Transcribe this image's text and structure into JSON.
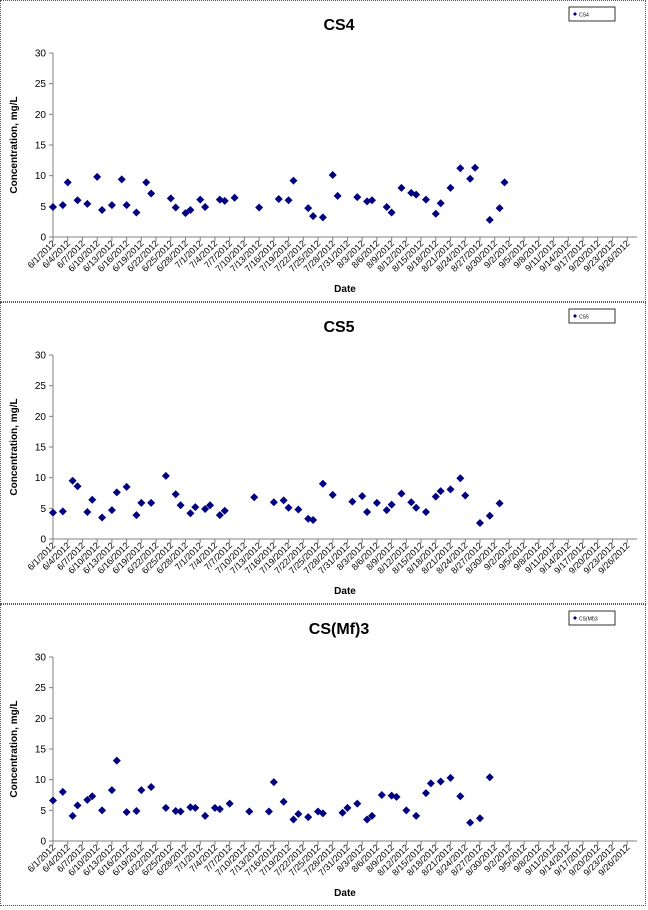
{
  "colors": {
    "marker": "#000080",
    "axis": "#808080",
    "frame": "#555555"
  },
  "chart_data": [
    {
      "type": "scatter",
      "title": "CS4",
      "legend_label": "CS4",
      "legend_position": "top-right",
      "xlabel": "Date",
      "ylabel": "Concentration, mg/L",
      "ylim": [
        0,
        30
      ],
      "yticks": [
        0,
        5,
        10,
        15,
        20,
        25,
        30
      ],
      "grid": false,
      "x_range": [
        "2012-06-01",
        "2012-09-28"
      ],
      "xtick_labels": [
        "6/1/2012",
        "6/4/2012",
        "6/7/2012",
        "6/10/2012",
        "6/13/2012",
        "6/16/2012",
        "6/19/2012",
        "6/22/2012",
        "6/25/2012",
        "6/28/2012",
        "7/1/2012",
        "7/4/2012",
        "7/7/2012",
        "7/10/2012",
        "7/13/2012",
        "7/16/2012",
        "7/19/2012",
        "7/22/2012",
        "7/25/2012",
        "7/28/2012",
        "7/31/2012",
        "8/3/2012",
        "8/6/2012",
        "8/9/2012",
        "8/12/2012",
        "8/15/2012",
        "8/18/2012",
        "8/21/2012",
        "8/24/2012",
        "8/27/2012",
        "8/30/2012",
        "9/2/2012",
        "9/5/2012",
        "9/8/2012",
        "9/11/2012",
        "9/14/2012",
        "9/17/2012",
        "9/20/2012",
        "9/23/2012",
        "9/26/2012"
      ],
      "points": [
        [
          "2012-06-01",
          4.9
        ],
        [
          "2012-06-03",
          5.2
        ],
        [
          "2012-06-04",
          8.9
        ],
        [
          "2012-06-06",
          6.0
        ],
        [
          "2012-06-08",
          5.4
        ],
        [
          "2012-06-10",
          9.8
        ],
        [
          "2012-06-11",
          4.4
        ],
        [
          "2012-06-13",
          5.2
        ],
        [
          "2012-06-15",
          9.4
        ],
        [
          "2012-06-16",
          5.2
        ],
        [
          "2012-06-18",
          4.0
        ],
        [
          "2012-06-20",
          8.9
        ],
        [
          "2012-06-21",
          7.1
        ],
        [
          "2012-06-25",
          6.3
        ],
        [
          "2012-06-26",
          4.8
        ],
        [
          "2012-06-28",
          3.9
        ],
        [
          "2012-06-29",
          4.4
        ],
        [
          "2012-07-01",
          6.1
        ],
        [
          "2012-07-02",
          4.9
        ],
        [
          "2012-07-05",
          6.1
        ],
        [
          "2012-07-06",
          5.9
        ],
        [
          "2012-07-08",
          6.4
        ],
        [
          "2012-07-13",
          4.8
        ],
        [
          "2012-07-17",
          6.2
        ],
        [
          "2012-07-19",
          6.0
        ],
        [
          "2012-07-20",
          9.2
        ],
        [
          "2012-07-23",
          4.7
        ],
        [
          "2012-07-24",
          3.4
        ],
        [
          "2012-07-26",
          3.2
        ],
        [
          "2012-07-28",
          10.1
        ],
        [
          "2012-07-29",
          6.7
        ],
        [
          "2012-08-02",
          6.5
        ],
        [
          "2012-08-04",
          5.8
        ],
        [
          "2012-08-05",
          6.0
        ],
        [
          "2012-08-08",
          4.9
        ],
        [
          "2012-08-09",
          4.0
        ],
        [
          "2012-08-11",
          8.0
        ],
        [
          "2012-08-13",
          7.2
        ],
        [
          "2012-08-14",
          6.9
        ],
        [
          "2012-08-16",
          6.1
        ],
        [
          "2012-08-18",
          3.8
        ],
        [
          "2012-08-19",
          5.5
        ],
        [
          "2012-08-21",
          8.0
        ],
        [
          "2012-08-23",
          11.2
        ],
        [
          "2012-08-25",
          9.5
        ],
        [
          "2012-08-26",
          11.3
        ],
        [
          "2012-08-29",
          2.8
        ],
        [
          "2012-08-31",
          4.7
        ],
        [
          "2012-09-01",
          8.9
        ]
      ]
    },
    {
      "type": "scatter",
      "title": "CS5",
      "legend_label": "CS5",
      "legend_position": "top-right",
      "xlabel": "Date",
      "ylabel": "Concentration, mg/L",
      "ylim": [
        0,
        30
      ],
      "yticks": [
        0,
        5,
        10,
        15,
        20,
        25,
        30
      ],
      "grid": false,
      "x_range": [
        "2012-06-01",
        "2012-09-28"
      ],
      "xtick_labels": [
        "6/1/2012",
        "6/4/2012",
        "6/7/2012",
        "6/10/2012",
        "6/13/2012",
        "6/16/2012",
        "6/19/2012",
        "6/22/2012",
        "6/25/2012",
        "6/28/2012",
        "7/1/2012",
        "7/4/2012",
        "7/7/2012",
        "7/10/2012",
        "7/13/2012",
        "7/16/2012",
        "7/19/2012",
        "7/22/2012",
        "7/25/2012",
        "7/28/2012",
        "7/31/2012",
        "8/3/2012",
        "8/6/2012",
        "8/9/2012",
        "8/12/2012",
        "8/15/2012",
        "8/18/2012",
        "8/21/2012",
        "8/24/2012",
        "8/27/2012",
        "8/30/2012",
        "9/2/2012",
        "9/5/2012",
        "9/8/2012",
        "9/11/2012",
        "9/14/2012",
        "9/17/2012",
        "9/20/2012",
        "9/23/2012",
        "9/26/2012"
      ],
      "points": [
        [
          "2012-06-01",
          4.3
        ],
        [
          "2012-06-03",
          4.5
        ],
        [
          "2012-06-05",
          9.5
        ],
        [
          "2012-06-06",
          8.6
        ],
        [
          "2012-06-08",
          4.4
        ],
        [
          "2012-06-09",
          6.4
        ],
        [
          "2012-06-11",
          3.5
        ],
        [
          "2012-06-13",
          4.7
        ],
        [
          "2012-06-14",
          7.6
        ],
        [
          "2012-06-16",
          8.5
        ],
        [
          "2012-06-18",
          3.9
        ],
        [
          "2012-06-19",
          5.9
        ],
        [
          "2012-06-21",
          5.9
        ],
        [
          "2012-06-24",
          10.3
        ],
        [
          "2012-06-26",
          7.3
        ],
        [
          "2012-06-27",
          5.5
        ],
        [
          "2012-06-29",
          4.2
        ],
        [
          "2012-06-30",
          5.2
        ],
        [
          "2012-07-02",
          4.9
        ],
        [
          "2012-07-03",
          5.5
        ],
        [
          "2012-07-05",
          3.9
        ],
        [
          "2012-07-06",
          4.6
        ],
        [
          "2012-07-12",
          6.8
        ],
        [
          "2012-07-16",
          6.0
        ],
        [
          "2012-07-18",
          6.3
        ],
        [
          "2012-07-19",
          5.1
        ],
        [
          "2012-07-21",
          4.8
        ],
        [
          "2012-07-23",
          3.3
        ],
        [
          "2012-07-24",
          3.1
        ],
        [
          "2012-07-26",
          9.0
        ],
        [
          "2012-07-28",
          7.2
        ],
        [
          "2012-08-01",
          6.1
        ],
        [
          "2012-08-03",
          7.0
        ],
        [
          "2012-08-04",
          4.4
        ],
        [
          "2012-08-06",
          5.9
        ],
        [
          "2012-08-08",
          4.7
        ],
        [
          "2012-08-09",
          5.6
        ],
        [
          "2012-08-11",
          7.4
        ],
        [
          "2012-08-13",
          6.0
        ],
        [
          "2012-08-14",
          5.1
        ],
        [
          "2012-08-16",
          4.4
        ],
        [
          "2012-08-18",
          6.9
        ],
        [
          "2012-08-19",
          7.8
        ],
        [
          "2012-08-21",
          8.1
        ],
        [
          "2012-08-23",
          9.9
        ],
        [
          "2012-08-24",
          7.1
        ],
        [
          "2012-08-27",
          2.6
        ],
        [
          "2012-08-29",
          3.8
        ],
        [
          "2012-08-31",
          5.8
        ]
      ]
    },
    {
      "type": "scatter",
      "title": "CS(Mf)3",
      "legend_label": "CS(Mf)3",
      "legend_position": "top-right",
      "xlabel": "Date",
      "ylabel": "Concentration, mg/L",
      "ylim": [
        0,
        30
      ],
      "yticks": [
        0,
        5,
        10,
        15,
        20,
        25,
        30
      ],
      "grid": false,
      "x_range": [
        "2012-06-01",
        "2012-09-28"
      ],
      "xtick_labels": [
        "6/1/2012",
        "6/4/2012",
        "6/7/2012",
        "6/10/2012",
        "6/13/2012",
        "6/16/2012",
        "6/19/2012",
        "6/22/2012",
        "6/25/2012",
        "6/28/2012",
        "7/1/2012",
        "7/4/2012",
        "7/7/2012",
        "7/10/2012",
        "7/13/2012",
        "7/16/2012",
        "7/19/2012",
        "7/22/2012",
        "7/25/2012",
        "7/28/2012",
        "7/31/2012",
        "8/3/2012",
        "8/6/2012",
        "8/9/2012",
        "8/12/2012",
        "8/15/2012",
        "8/18/2012",
        "8/21/2012",
        "8/24/2012",
        "8/27/2012",
        "8/30/2012",
        "9/2/2012",
        "9/5/2012",
        "9/8/2012",
        "9/11/2012",
        "9/14/2012",
        "9/17/2012",
        "9/20/2012",
        "9/23/2012",
        "9/26/2012"
      ],
      "points": [
        [
          "2012-06-01",
          6.6
        ],
        [
          "2012-06-03",
          8.0
        ],
        [
          "2012-06-05",
          4.1
        ],
        [
          "2012-06-06",
          5.8
        ],
        [
          "2012-06-08",
          6.7
        ],
        [
          "2012-06-09",
          7.3
        ],
        [
          "2012-06-11",
          5.0
        ],
        [
          "2012-06-13",
          8.3
        ],
        [
          "2012-06-14",
          13.1
        ],
        [
          "2012-06-16",
          4.7
        ],
        [
          "2012-06-18",
          4.9
        ],
        [
          "2012-06-19",
          8.3
        ],
        [
          "2012-06-21",
          8.8
        ],
        [
          "2012-06-24",
          5.4
        ],
        [
          "2012-06-26",
          4.9
        ],
        [
          "2012-06-27",
          4.8
        ],
        [
          "2012-06-29",
          5.5
        ],
        [
          "2012-06-30",
          5.4
        ],
        [
          "2012-07-02",
          4.1
        ],
        [
          "2012-07-04",
          5.4
        ],
        [
          "2012-07-05",
          5.2
        ],
        [
          "2012-07-07",
          6.1
        ],
        [
          "2012-07-11",
          4.8
        ],
        [
          "2012-07-15",
          4.8
        ],
        [
          "2012-07-16",
          9.6
        ],
        [
          "2012-07-18",
          6.4
        ],
        [
          "2012-07-20",
          3.5
        ],
        [
          "2012-07-21",
          4.4
        ],
        [
          "2012-07-23",
          3.9
        ],
        [
          "2012-07-25",
          4.8
        ],
        [
          "2012-07-26",
          4.5
        ],
        [
          "2012-07-30",
          4.6
        ],
        [
          "2012-07-31",
          5.4
        ],
        [
          "2012-08-02",
          6.1
        ],
        [
          "2012-08-04",
          3.5
        ],
        [
          "2012-08-05",
          4.1
        ],
        [
          "2012-08-07",
          7.5
        ],
        [
          "2012-08-09",
          7.4
        ],
        [
          "2012-08-10",
          7.2
        ],
        [
          "2012-08-12",
          5.0
        ],
        [
          "2012-08-14",
          4.1
        ],
        [
          "2012-08-16",
          7.8
        ],
        [
          "2012-08-17",
          9.4
        ],
        [
          "2012-08-19",
          9.7
        ],
        [
          "2012-08-21",
          10.3
        ],
        [
          "2012-08-23",
          7.3
        ],
        [
          "2012-08-25",
          3.0
        ],
        [
          "2012-08-27",
          3.7
        ],
        [
          "2012-08-29",
          10.4
        ]
      ]
    }
  ]
}
